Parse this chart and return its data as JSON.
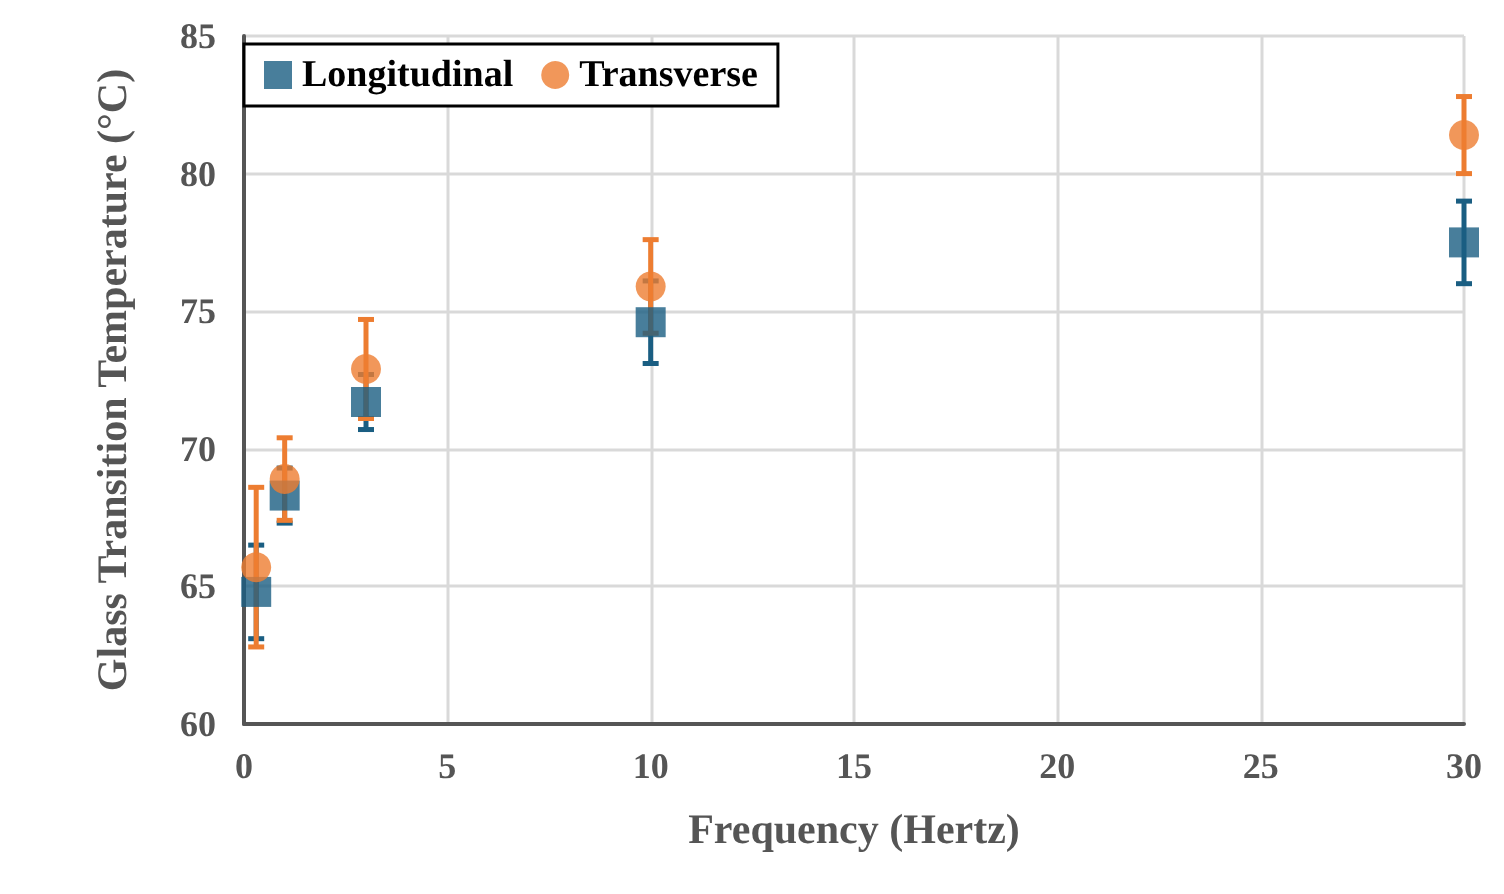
{
  "chart_data": {
    "type": "scatter",
    "xlabel": "Frequency (Hertz)",
    "ylabel": "Glass Transition Temperature (°C)",
    "x": [
      0.3,
      1,
      3,
      10,
      30
    ],
    "series": [
      {
        "name": "Longitudinal",
        "color": "#1a5e82",
        "marker": "square",
        "values": [
          64.8,
          68.3,
          71.7,
          74.6,
          77.5
        ],
        "errors": [
          1.7,
          1.0,
          1.0,
          1.5,
          1.5
        ]
      },
      {
        "name": "Transverse",
        "color": "#ed7d31",
        "marker": "circle",
        "values": [
          65.7,
          68.9,
          72.9,
          75.9,
          81.4
        ],
        "errors": [
          2.9,
          1.5,
          1.8,
          1.7,
          1.4
        ]
      }
    ],
    "xlim": [
      0,
      30
    ],
    "xticks": [
      0,
      5,
      10,
      15,
      20,
      25,
      30
    ],
    "ylim": [
      60,
      85
    ],
    "yticks": [
      60,
      65,
      70,
      75,
      80,
      85
    ],
    "grid": true,
    "legend": "top left"
  }
}
